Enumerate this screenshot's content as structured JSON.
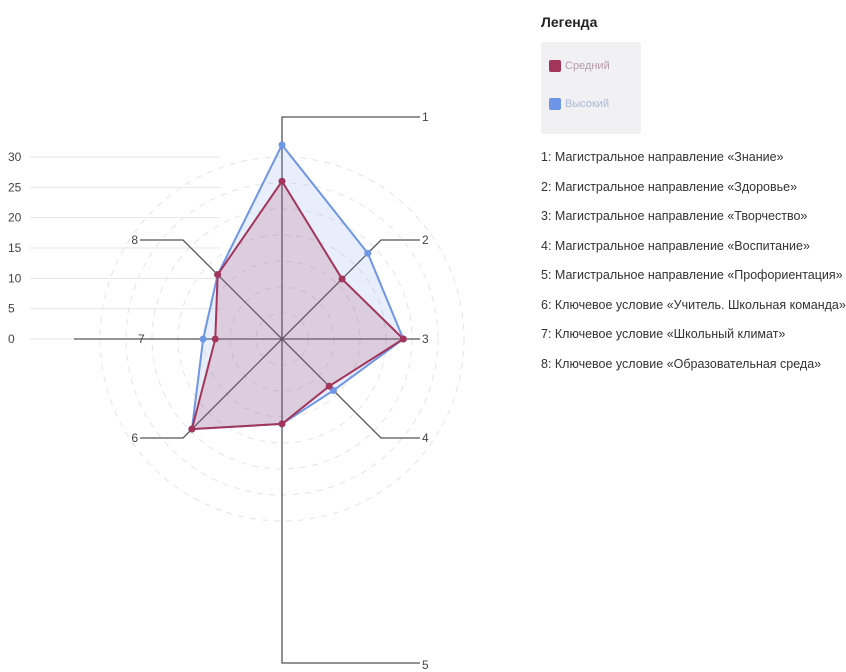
{
  "chart_data": {
    "type": "radar",
    "axes": [
      "1",
      "2",
      "3",
      "4",
      "5",
      "6",
      "7",
      "8"
    ],
    "radial_ticks": [
      "0",
      "5",
      "10",
      "15",
      "20",
      "25",
      "30"
    ],
    "rlim": [
      0,
      30
    ],
    "series": [
      {
        "name": "Средний",
        "color": "#a3355a",
        "values": [
          26,
          14,
          20,
          11,
          14,
          21,
          11,
          15
        ]
      },
      {
        "name": "Высокий",
        "color": "#6e96e6",
        "values": [
          32,
          20,
          20,
          12,
          14,
          21,
          13,
          15
        ]
      }
    ],
    "legend": {
      "title": "Легенда",
      "placement": "top-right"
    },
    "notes": [
      "1: Магистральное направление «Знание»",
      "2: Магистральное направление «Здоровье»",
      "3: Магистральное направление «Творчество»",
      "4: Магистральное направление «Воспитание»",
      "5: Магистральное направление «Профориентация»",
      "6: Ключевое условие «Учитель. Школьная команда»",
      "7: Ключевое условие «Школьный климат»",
      "8: Ключевое условие «Образовательная среда»"
    ]
  }
}
